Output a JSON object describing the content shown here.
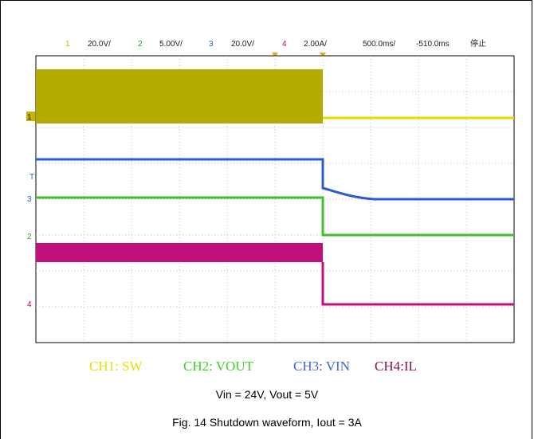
{
  "scope": {
    "header": [
      {
        "ch": "1",
        "scale": "20.0V/"
      },
      {
        "ch": "2",
        "scale": "5.00V/"
      },
      {
        "ch": "3",
        "scale": "20.0V/"
      },
      {
        "ch": "4",
        "scale": "2.00A/"
      }
    ],
    "timebase": "500.0ms/",
    "delay": "-510.0ms",
    "status": "停止",
    "markers": [
      "1",
      "3",
      "2",
      "4"
    ],
    "trigger": "T"
  },
  "legend": [
    "CH1: SW",
    "CH2: VOUT",
    "CH3: VIN",
    "CH4:IL"
  ],
  "caption": {
    "conditions": "Vin = 24V, Vout = 5V",
    "title": "Fig. 14 Shutdown waveform, Iout = 3A"
  }
}
